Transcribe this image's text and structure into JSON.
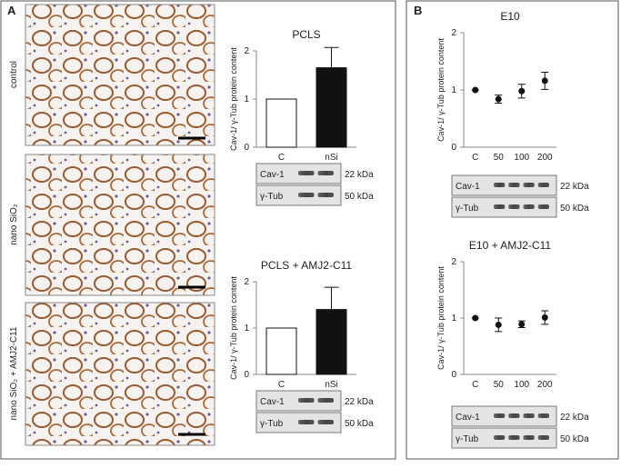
{
  "panels": [
    "A",
    "B"
  ],
  "images": [
    "control",
    "nano SiO₂",
    "nano SiO₂ + AMJ2-C11"
  ],
  "chart_data": [
    {
      "type": "bar",
      "title": "PCLS",
      "ylabel": "Cav-1/ γ-Tub protein content",
      "categories": [
        "C",
        "nSi"
      ],
      "values": [
        1,
        1.65
      ],
      "errors": [
        0,
        0.42
      ],
      "colors": [
        "#ffffff",
        "#111111"
      ],
      "ylim": [
        0,
        2
      ],
      "yticks": [
        0,
        1,
        2
      ],
      "blots": [
        {
          "label": "Cav-1",
          "size": "22 kDa"
        },
        {
          "label": "γ-Tub",
          "size": "50 kDa"
        }
      ]
    },
    {
      "type": "bar",
      "title": "PCLS + AMJ2-C11",
      "ylabel": "Cav-1/ γ-Tub protein content",
      "categories": [
        "C",
        "nSi"
      ],
      "values": [
        1,
        1.4
      ],
      "errors": [
        0,
        0.48
      ],
      "colors": [
        "#ffffff",
        "#111111"
      ],
      "ylim": [
        0,
        2
      ],
      "yticks": [
        0,
        1,
        2
      ],
      "blots": [
        {
          "label": "Cav-1",
          "size": "22 kDa"
        },
        {
          "label": "γ-Tub",
          "size": "50 kDa"
        }
      ]
    },
    {
      "type": "scatter",
      "title": "E10",
      "ylabel": "Cav-1/ γ-Tub protein content",
      "categories": [
        "C",
        "50",
        "100",
        "200"
      ],
      "values": [
        1,
        0.84,
        0.98,
        1.16
      ],
      "errors": [
        0,
        0.07,
        0.12,
        0.15
      ],
      "color": "#111111",
      "ylim": [
        0,
        2
      ],
      "yticks": [
        0,
        1,
        2
      ],
      "blots": [
        {
          "label": "Cav-1",
          "size": "22 kDa"
        },
        {
          "label": "γ-Tub",
          "size": "50 kDa"
        }
      ]
    },
    {
      "type": "scatter",
      "title": "E10 + AMJ2-C11",
      "ylabel": "Cav-1/ γ-Tub protein content",
      "categories": [
        "C",
        "50",
        "100",
        "200"
      ],
      "values": [
        1,
        0.88,
        0.89,
        1.01
      ],
      "errors": [
        0,
        0.12,
        0.06,
        0.12
      ],
      "color": "#111111",
      "ylim": [
        0,
        2
      ],
      "yticks": [
        0,
        1,
        2
      ],
      "blots": [
        {
          "label": "Cav-1",
          "size": "22 kDa"
        },
        {
          "label": "γ-Tub",
          "size": "50 kDa"
        }
      ]
    }
  ]
}
